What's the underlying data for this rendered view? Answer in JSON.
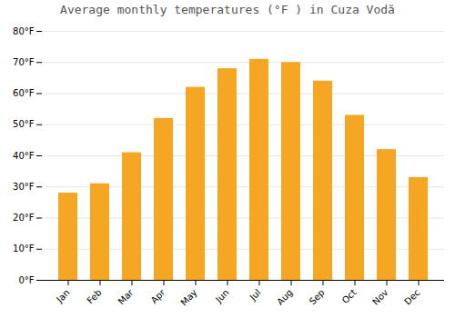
{
  "chart_data": {
    "type": "bar",
    "title": "Average monthly temperatures (°F ) in Cuza Vodă",
    "categories": [
      "Jan",
      "Feb",
      "Mar",
      "Apr",
      "May",
      "Jun",
      "Jul",
      "Aug",
      "Sep",
      "Oct",
      "Nov",
      "Dec"
    ],
    "values": [
      28,
      31,
      41,
      52,
      62,
      68,
      71,
      70,
      64,
      53,
      42,
      33
    ],
    "color": "#F5A623",
    "ylim": [
      0,
      80
    ],
    "yticks": [
      {
        "value": 0,
        "label": "0°F"
      },
      {
        "value": 10,
        "label": "10°F"
      },
      {
        "value": 20,
        "label": "20°F"
      },
      {
        "value": 30,
        "label": "30°F"
      },
      {
        "value": 40,
        "label": "40°F"
      },
      {
        "value": 50,
        "label": "50°F"
      },
      {
        "value": 60,
        "label": "60°F"
      },
      {
        "value": 70,
        "label": "70°F"
      },
      {
        "value": 80,
        "label": "80°F"
      }
    ],
    "grid": true
  }
}
